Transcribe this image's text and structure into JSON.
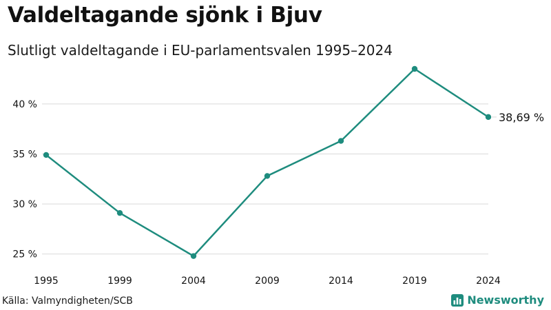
{
  "header": {
    "title": "Valdeltagande sjönk i Bjuv",
    "subtitle": "Slutligt valdeltagande i EU-parlamentsvalen 1995–2024"
  },
  "footer": {
    "source": "Källa: Valmyndigheten/SCB",
    "brand": "Newsworthy"
  },
  "colors": {
    "line": "#1e8c7e",
    "grid": "#d9d9d9",
    "text": "#111111"
  },
  "chart_data": {
    "type": "line",
    "title": "Valdeltagande sjönk i Bjuv",
    "subtitle": "Slutligt valdeltagande i EU-parlamentsvalen 1995–2024",
    "xlabel": "",
    "ylabel": "",
    "x": [
      "1995",
      "1999",
      "2004",
      "2009",
      "2014",
      "2019",
      "2024"
    ],
    "series": [
      {
        "name": "Valdeltagande",
        "values": [
          34.9,
          29.1,
          24.8,
          32.8,
          36.3,
          43.5,
          38.69
        ]
      }
    ],
    "yticks": [
      25,
      30,
      35,
      40
    ],
    "ytick_labels": [
      "25 %",
      "30 %",
      "35 %",
      "40 %"
    ],
    "ylim": [
      24.5,
      43.5
    ],
    "end_label": "38,69 %",
    "grid": true,
    "legend": "none"
  }
}
